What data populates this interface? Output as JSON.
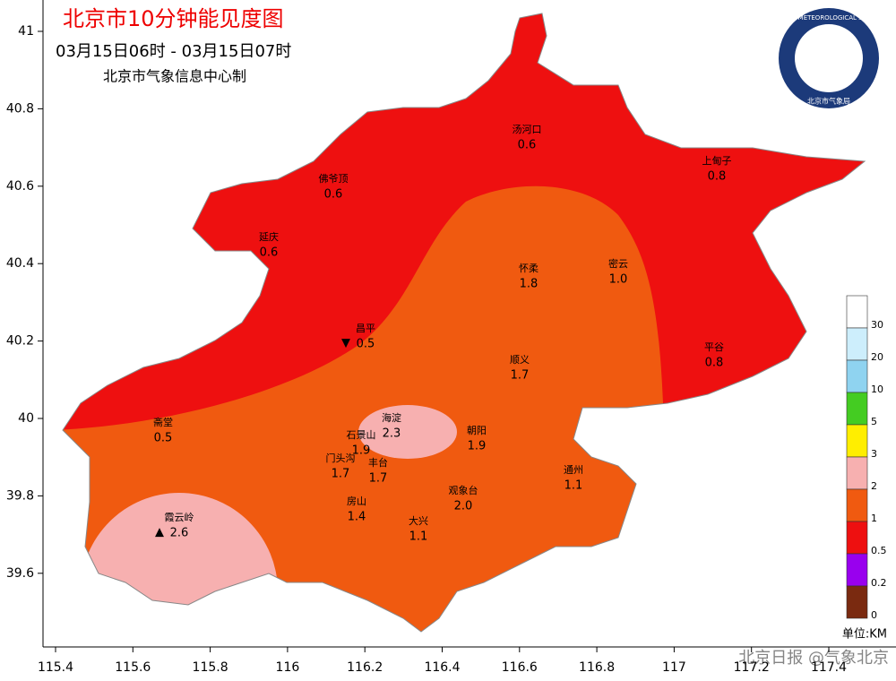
{
  "header": {
    "title": "北京市10分钟能见度图",
    "time": "03月15日06时 - 03月15日07时",
    "producer": "北京市气象信息中心制"
  },
  "axes": {
    "x_ticks": [
      "115.4",
      "115.6",
      "115.8",
      "116",
      "116.2",
      "116.4",
      "116.6",
      "116.8",
      "117",
      "117.2",
      "117.4"
    ],
    "y_ticks": [
      "41",
      "40.8",
      "40.6",
      "40.4",
      "40.2",
      "40",
      "39.8",
      "39.6"
    ]
  },
  "stations": [
    {
      "name": "汤河口",
      "value": "0.6"
    },
    {
      "name": "上甸子",
      "value": "0.8"
    },
    {
      "name": "佛爷顶",
      "value": "0.6"
    },
    {
      "name": "延庆",
      "value": "0.6"
    },
    {
      "name": "怀柔",
      "value": "1.8"
    },
    {
      "name": "密云",
      "value": "1.0"
    },
    {
      "name": "昌平",
      "value": "0.5",
      "marker": "▼"
    },
    {
      "name": "平谷",
      "value": "0.8"
    },
    {
      "name": "顺义",
      "value": "1.7"
    },
    {
      "name": "斋堂",
      "value": "0.5"
    },
    {
      "name": "海淀",
      "value": "2.3"
    },
    {
      "name": "石景山",
      "value": "1.9"
    },
    {
      "name": "朝阳",
      "value": "1.9"
    },
    {
      "name": "门头沟",
      "value": "1.7"
    },
    {
      "name": "丰台",
      "value": "1.7"
    },
    {
      "name": "通州",
      "value": "1.1"
    },
    {
      "name": "观象台",
      "value": "2.0"
    },
    {
      "name": "房山",
      "value": "1.4"
    },
    {
      "name": "霞云岭",
      "value": "2.6",
      "marker": "▲"
    },
    {
      "name": "大兴",
      "value": "1.1"
    }
  ],
  "legend": {
    "levels": [
      "30",
      "20",
      "10",
      "5",
      "3",
      "2",
      "1",
      "0.5",
      "0.2",
      "0"
    ],
    "colors": [
      "#ffffff",
      "#cdeefc",
      "#8fd3f0",
      "#44cc22",
      "#ffee00",
      "#f7b0b0",
      "#f05a10",
      "#ee1010",
      "#9900ee",
      "#7a2a10"
    ],
    "unit": "单位:KM"
  },
  "logo": {
    "text": "BEIJING METEOROLOGICAL SERVICE",
    "sub": "北京市气象局"
  },
  "watermark": "北京日报 @气象北京"
}
